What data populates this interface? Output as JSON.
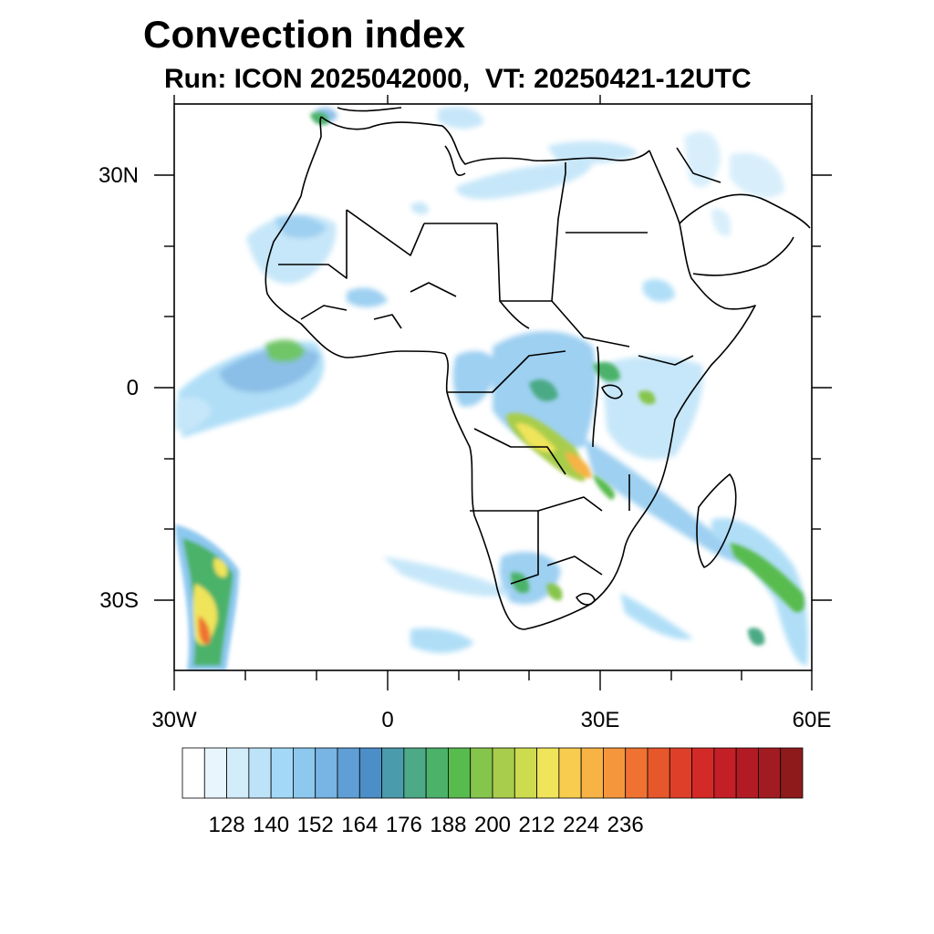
{
  "title": "Convection index",
  "subtitle": "Run: ICON 2025042000,  VT: 20250421-12UTC",
  "map": {
    "region": "Africa",
    "lon_range": [
      -30,
      60
    ],
    "lat_range": [
      -40,
      40
    ],
    "lat_tick_labels": [
      "30N",
      "0",
      "30S"
    ],
    "lon_tick_labels": [
      "30W",
      "0",
      "30E",
      "60E"
    ]
  },
  "colorbar": {
    "colors": [
      "#ffffff",
      "#e8f5fd",
      "#d2ecfa",
      "#bde3f8",
      "#a3d9f6",
      "#8dc8ef",
      "#78b4e4",
      "#5f9fd6",
      "#4c8ec8",
      "#4a9bab",
      "#4caa86",
      "#4cb269",
      "#58bb4e",
      "#86c54b",
      "#a8cd4c",
      "#cddc4f",
      "#efe45a",
      "#f7cc4f",
      "#f7b345",
      "#f5963c",
      "#ef7232",
      "#e6572b",
      "#de3f28",
      "#d42a27",
      "#c31f26",
      "#b21b24",
      "#a31b22",
      "#8e1a1c"
    ],
    "tick_labels": [
      "128",
      "140",
      "152",
      "164",
      "176",
      "188",
      "200",
      "212",
      "224",
      "236"
    ]
  }
}
